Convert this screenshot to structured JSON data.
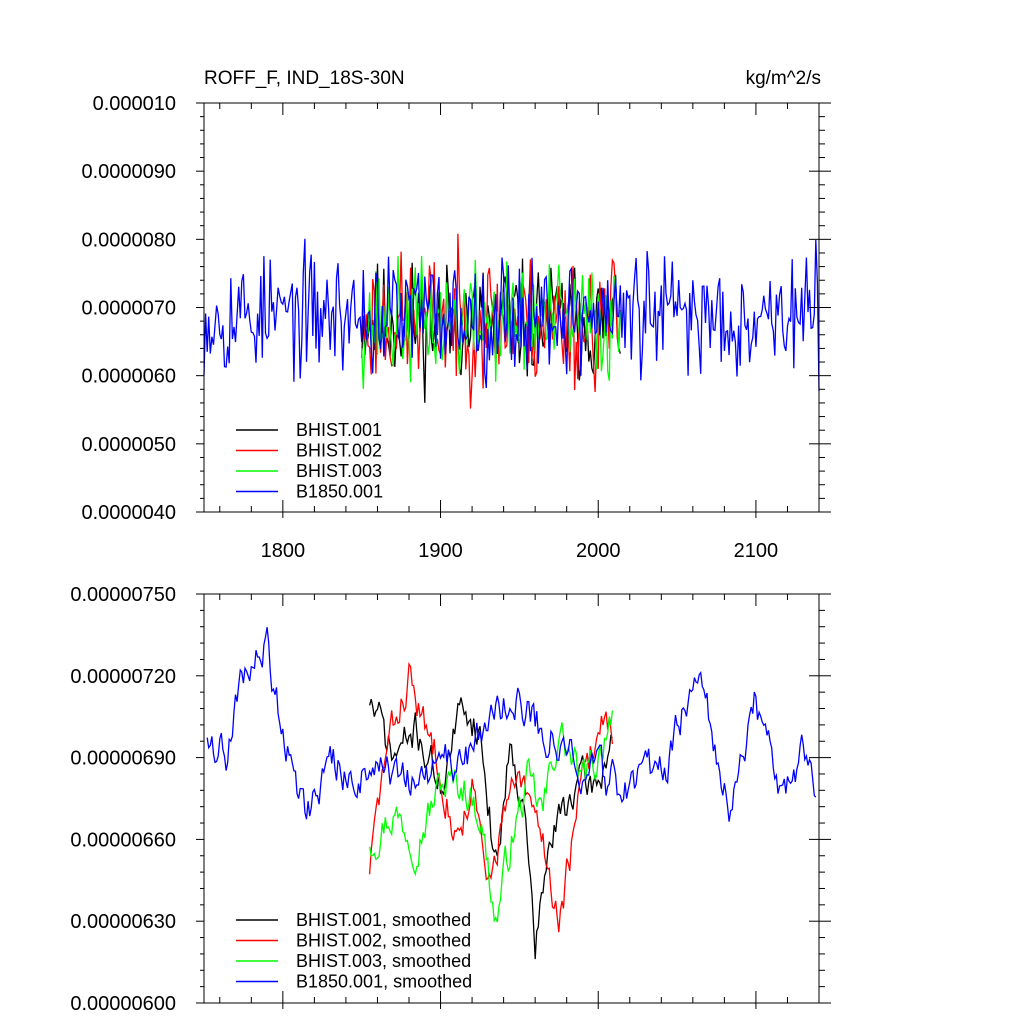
{
  "colors": {
    "black": "#000000",
    "red": "#ff0000",
    "green": "#00ff00",
    "blue": "#0000ff"
  },
  "chart_data": [
    {
      "type": "line",
      "title_left": "ROFF_F, IND_18S-30N",
      "title_right": "kg/m^2/s",
      "xlim": [
        1750,
        2140
      ],
      "ylim": [
        4e-06,
        1e-05
      ],
      "x_ticks": [
        1800,
        1900,
        2000,
        2100
      ],
      "x_tick_labels": [
        "1800",
        "1900",
        "2000",
        "2100"
      ],
      "y_ticks": [
        4e-06,
        5e-06,
        6e-06,
        7e-06,
        8e-06,
        9e-06,
        1e-05
      ],
      "y_tick_labels": [
        "0.0000040",
        "0.0000050",
        "0.0000060",
        "0.0000070",
        "0.0000080",
        "0.0000090",
        "0.000010"
      ],
      "series": [
        {
          "name": "BHIST.001",
          "color": "#000000",
          "x_start": 1850,
          "x_end": 2014,
          "mean": 6.8e-06,
          "amp": 8e-07,
          "seed": 11
        },
        {
          "name": "BHIST.002",
          "color": "#ff0000",
          "x_start": 1850,
          "x_end": 2014,
          "mean": 6.8e-06,
          "amp": 9e-07,
          "seed": 23
        },
        {
          "name": "BHIST.003",
          "color": "#00ff00",
          "x_start": 1850,
          "x_end": 2014,
          "mean": 6.8e-06,
          "amp": 8e-07,
          "seed": 37
        },
        {
          "name": "B1850.001",
          "color": "#0000ff",
          "x_start": 1750,
          "x_end": 2140,
          "mean": 6.9e-06,
          "amp": 8e-07,
          "seed": 53
        }
      ],
      "legend": [
        {
          "label": "BHIST.001",
          "color": "#000000"
        },
        {
          "label": "BHIST.002",
          "color": "#ff0000"
        },
        {
          "label": "BHIST.003",
          "color": "#00ff00"
        },
        {
          "label": "B1850.001",
          "color": "#0000ff"
        }
      ]
    },
    {
      "type": "line",
      "xlim": [
        1750,
        2140
      ],
      "ylim": [
        6e-06,
        7.5e-06
      ],
      "x_ticks": [
        1800,
        1900,
        2000,
        2100
      ],
      "y_ticks": [
        6e-06,
        6.3e-06,
        6.6e-06,
        6.9e-06,
        7.2e-06,
        7.5e-06
      ],
      "y_tick_labels": [
        "0.00000600",
        "0.00000630",
        "0.00000660",
        "0.00000690",
        "0.00000720",
        "0.00000750"
      ],
      "series": [
        {
          "name": "BHIST.001, smoothed",
          "color": "#000000",
          "x_start": 1855,
          "x_end": 2009,
          "knots": [
            [
              1855,
              7.12e-06
            ],
            [
              1870,
              6.9e-06
            ],
            [
              1885,
              7e-06
            ],
            [
              1900,
              6.8e-06
            ],
            [
              1915,
              7.1e-06
            ],
            [
              1925,
              7e-06
            ],
            [
              1935,
              6.5e-06
            ],
            [
              1945,
              7e-06
            ],
            [
              1955,
              6.6e-06
            ],
            [
              1960,
              6.2e-06
            ],
            [
              1970,
              6.6e-06
            ],
            [
              1985,
              6.8e-06
            ],
            [
              2000,
              6.8e-06
            ],
            [
              2009,
              7e-06
            ]
          ],
          "seed": 71
        },
        {
          "name": "BHIST.002, smoothed",
          "color": "#ff0000",
          "x_start": 1855,
          "x_end": 2009,
          "knots": [
            [
              1855,
              6.5e-06
            ],
            [
              1865,
              6.9e-06
            ],
            [
              1880,
              7.2e-06
            ],
            [
              1890,
              7e-06
            ],
            [
              1900,
              6.9e-06
            ],
            [
              1910,
              6.6e-06
            ],
            [
              1920,
              6.8e-06
            ],
            [
              1930,
              6.4e-06
            ],
            [
              1940,
              6.7e-06
            ],
            [
              1950,
              6.8e-06
            ],
            [
              1965,
              6.6e-06
            ],
            [
              1975,
              6.3e-06
            ],
            [
              1990,
              6.8e-06
            ],
            [
              2005,
              7.1e-06
            ],
            [
              2009,
              7e-06
            ]
          ],
          "seed": 83
        },
        {
          "name": "BHIST.003, smoothed",
          "color": "#00ff00",
          "x_start": 1855,
          "x_end": 2009,
          "knots": [
            [
              1855,
              6.6e-06
            ],
            [
              1870,
              6.7e-06
            ],
            [
              1885,
              6.6e-06
            ],
            [
              1900,
              6.8e-06
            ],
            [
              1915,
              6.8e-06
            ],
            [
              1925,
              6.7e-06
            ],
            [
              1935,
              6.3e-06
            ],
            [
              1945,
              6.6e-06
            ],
            [
              1955,
              6.8e-06
            ],
            [
              1965,
              6.7e-06
            ],
            [
              1975,
              7e-06
            ],
            [
              1990,
              6.8e-06
            ],
            [
              2000,
              6.9e-06
            ],
            [
              2009,
              7.1e-06
            ]
          ],
          "seed": 97
        },
        {
          "name": "B1850.001, smoothed",
          "color": "#0000ff",
          "x_start": 1752,
          "x_end": 2138,
          "knots": [
            [
              1752,
              7e-06
            ],
            [
              1765,
              6.9e-06
            ],
            [
              1775,
              7.2e-06
            ],
            [
              1790,
              7.3e-06
            ],
            [
              1800,
              7e-06
            ],
            [
              1815,
              6.7e-06
            ],
            [
              1830,
              6.9e-06
            ],
            [
              1845,
              6.8e-06
            ],
            [
              1860,
              6.9e-06
            ],
            [
              1875,
              6.8e-06
            ],
            [
              1890,
              6.8e-06
            ],
            [
              1905,
              6.9e-06
            ],
            [
              1920,
              6.9e-06
            ],
            [
              1935,
              7.1e-06
            ],
            [
              1950,
              7.1e-06
            ],
            [
              1965,
              7e-06
            ],
            [
              1985,
              6.9e-06
            ],
            [
              2005,
              6.8e-06
            ],
            [
              2025,
              6.8e-06
            ],
            [
              2045,
              6.9e-06
            ],
            [
              2065,
              7.3e-06
            ],
            [
              2075,
              6.9e-06
            ],
            [
              2085,
              6.7e-06
            ],
            [
              2100,
              7.1e-06
            ],
            [
              2115,
              6.8e-06
            ],
            [
              2130,
              6.9e-06
            ],
            [
              2138,
              6.8e-06
            ]
          ],
          "seed": 109
        }
      ],
      "legend": [
        {
          "label": "BHIST.001, smoothed",
          "color": "#000000"
        },
        {
          "label": "BHIST.002, smoothed",
          "color": "#ff0000"
        },
        {
          "label": "BHIST.003, smoothed",
          "color": "#00ff00"
        },
        {
          "label": "B1850.001, smoothed",
          "color": "#0000ff"
        }
      ]
    }
  ]
}
